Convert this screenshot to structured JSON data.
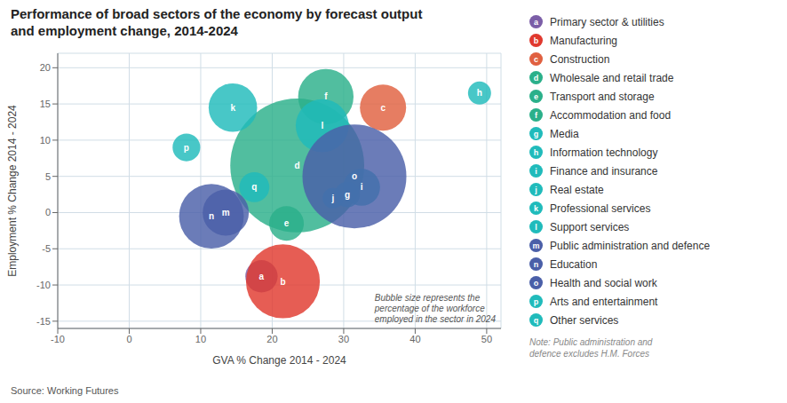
{
  "chart_data": {
    "type": "bubble",
    "title": "Performance of broad sectors of the economy by forecast output\nand employment change, 2014-2024",
    "xlabel": "GVA % Change 2014 - 2024",
    "ylabel": "Employment % Change 2014 - 2024",
    "source": "Source: Working Futures",
    "annotation": "Bubble size represents the\npercentage of the workforce\nemployed in the sector in 2024",
    "note": "Note: Public administration and\ndefence excludes H.M. Forces",
    "xlim": [
      -10,
      52
    ],
    "ylim": [
      -16,
      22
    ],
    "xticks": [
      -10,
      0,
      10,
      20,
      30,
      40,
      50
    ],
    "yticks": [
      -15,
      -10,
      -5,
      0,
      5,
      10,
      15,
      20
    ],
    "grid": true,
    "points": [
      {
        "label": "a",
        "x": 18.5,
        "y": -8.8,
        "size": 1.4,
        "color": "#7B5EA7"
      },
      {
        "label": "b",
        "x": 21.5,
        "y": -9.5,
        "size": 3.2,
        "color": "#E0392E"
      },
      {
        "label": "c",
        "x": 35.5,
        "y": 14.5,
        "size": 2.0,
        "color": "#E06040"
      },
      {
        "label": "d",
        "x": 23.5,
        "y": 6.5,
        "size": 5.8,
        "color": "#2BB08A"
      },
      {
        "label": "e",
        "x": 22.0,
        "y": -1.5,
        "size": 1.5,
        "color": "#2BB08A"
      },
      {
        "label": "f",
        "x": 27.5,
        "y": 16.0,
        "size": 2.4,
        "color": "#2BB08A"
      },
      {
        "label": "g",
        "x": 30.5,
        "y": 2.5,
        "size": 1.1,
        "color": "#20BBBB"
      },
      {
        "label": "h",
        "x": 49.0,
        "y": 16.5,
        "size": 1.0,
        "color": "#20BBBB"
      },
      {
        "label": "i",
        "x": 32.5,
        "y": 3.5,
        "size": 1.6,
        "color": "#20BBBB"
      },
      {
        "label": "j",
        "x": 28.5,
        "y": 2.0,
        "size": 0.9,
        "color": "#20BBBB"
      },
      {
        "label": "k",
        "x": 14.5,
        "y": 14.5,
        "size": 2.1,
        "color": "#20BBBB"
      },
      {
        "label": "l",
        "x": 27.0,
        "y": 12.0,
        "size": 2.3,
        "color": "#20BBBB"
      },
      {
        "label": "m",
        "x": 13.5,
        "y": 0.0,
        "size": 2.0,
        "color": "#4A5FA8"
      },
      {
        "label": "n",
        "x": 11.5,
        "y": -0.5,
        "size": 2.8,
        "color": "#4A5FA8"
      },
      {
        "label": "o",
        "x": 31.5,
        "y": 5.0,
        "size": 4.5,
        "color": "#4A5FA8"
      },
      {
        "label": "p",
        "x": 8.0,
        "y": 9.0,
        "size": 1.2,
        "color": "#20BBBB"
      },
      {
        "label": "q",
        "x": 17.5,
        "y": 3.5,
        "size": 1.3,
        "color": "#20BBBB"
      }
    ],
    "legend_items": [
      {
        "letter": "a",
        "label": "Primary sector & utilities",
        "color": "#7B5EA7"
      },
      {
        "letter": "b",
        "label": "Manufacturing",
        "color": "#E0392E"
      },
      {
        "letter": "c",
        "label": "Construction",
        "color": "#E06040"
      },
      {
        "letter": "d",
        "label": "Wholesale and retail trade",
        "color": "#2BB08A"
      },
      {
        "letter": "e",
        "label": "Transport and storage",
        "color": "#2BB08A"
      },
      {
        "letter": "f",
        "label": "Accommodation and food",
        "color": "#2BB08A"
      },
      {
        "letter": "g",
        "label": "Media",
        "color": "#20BBBB"
      },
      {
        "letter": "h",
        "label": "Information technology",
        "color": "#20BBBB"
      },
      {
        "letter": "i",
        "label": "Finance and insurance",
        "color": "#20BBBB"
      },
      {
        "letter": "j",
        "label": "Real estate",
        "color": "#20BBBB"
      },
      {
        "letter": "k",
        "label": "Professional services",
        "color": "#20BBBB"
      },
      {
        "letter": "l",
        "label": "Support services",
        "color": "#20BBBB"
      },
      {
        "letter": "m",
        "label": "Public administration and defence",
        "color": "#4A5FA8"
      },
      {
        "letter": "n",
        "label": "Education",
        "color": "#4A5FA8"
      },
      {
        "letter": "o",
        "label": "Health and social work",
        "color": "#4A5FA8"
      },
      {
        "letter": "p",
        "label": "Arts and entertainment",
        "color": "#20BBBB"
      },
      {
        "letter": "q",
        "label": "Other services",
        "color": "#20BBBB"
      }
    ]
  }
}
